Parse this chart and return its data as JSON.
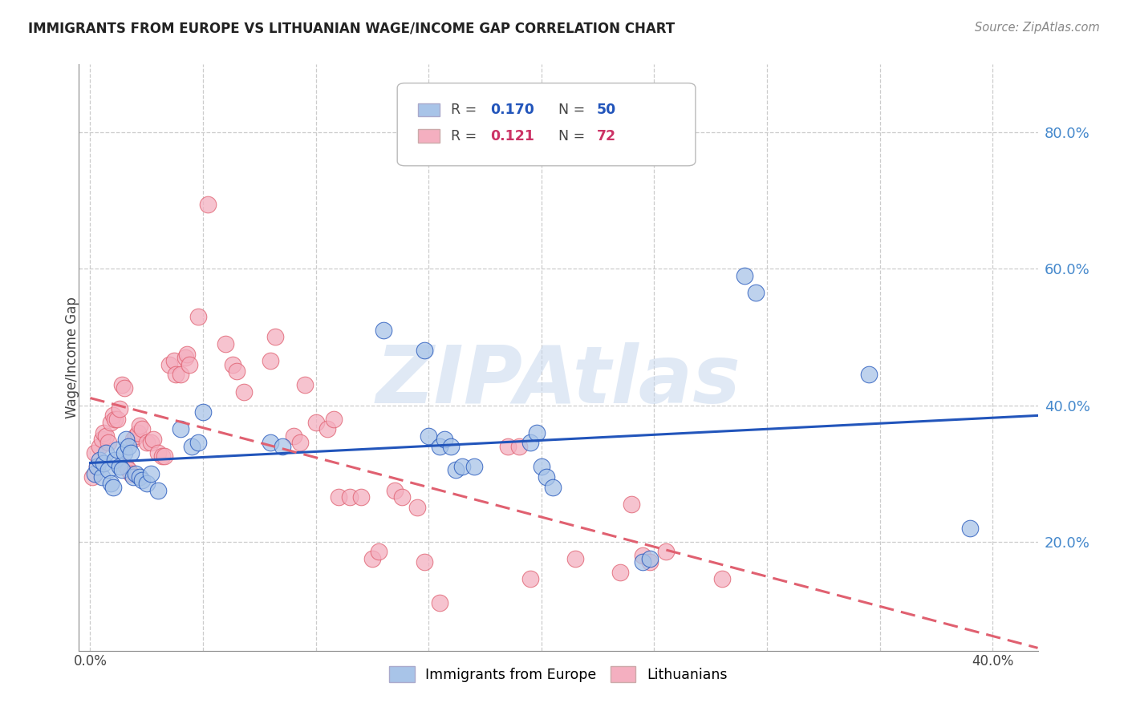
{
  "title": "IMMIGRANTS FROM EUROPE VS LITHUANIAN WAGE/INCOME GAP CORRELATION CHART",
  "source": "Source: ZipAtlas.com",
  "ylabel": "Wage/Income Gap",
  "right_yticks": [
    "20.0%",
    "40.0%",
    "60.0%",
    "80.0%"
  ],
  "right_ytick_vals": [
    0.2,
    0.4,
    0.6,
    0.8
  ],
  "blue_color": "#a8c4e8",
  "pink_color": "#f4afc0",
  "blue_line_color": "#2255bb",
  "pink_line_color": "#e06070",
  "blue_scatter": [
    [
      0.002,
      0.3
    ],
    [
      0.003,
      0.31
    ],
    [
      0.004,
      0.32
    ],
    [
      0.005,
      0.295
    ],
    [
      0.006,
      0.315
    ],
    [
      0.007,
      0.33
    ],
    [
      0.008,
      0.305
    ],
    [
      0.009,
      0.285
    ],
    [
      0.01,
      0.28
    ],
    [
      0.011,
      0.32
    ],
    [
      0.012,
      0.335
    ],
    [
      0.013,
      0.31
    ],
    [
      0.014,
      0.305
    ],
    [
      0.015,
      0.33
    ],
    [
      0.016,
      0.35
    ],
    [
      0.017,
      0.34
    ],
    [
      0.018,
      0.33
    ],
    [
      0.019,
      0.295
    ],
    [
      0.02,
      0.3
    ],
    [
      0.022,
      0.295
    ],
    [
      0.023,
      0.29
    ],
    [
      0.025,
      0.285
    ],
    [
      0.027,
      0.3
    ],
    [
      0.03,
      0.275
    ],
    [
      0.04,
      0.365
    ],
    [
      0.045,
      0.34
    ],
    [
      0.048,
      0.345
    ],
    [
      0.05,
      0.39
    ],
    [
      0.08,
      0.345
    ],
    [
      0.085,
      0.34
    ],
    [
      0.13,
      0.51
    ],
    [
      0.148,
      0.48
    ],
    [
      0.15,
      0.355
    ],
    [
      0.155,
      0.34
    ],
    [
      0.157,
      0.35
    ],
    [
      0.16,
      0.34
    ],
    [
      0.162,
      0.305
    ],
    [
      0.165,
      0.31
    ],
    [
      0.17,
      0.31
    ],
    [
      0.195,
      0.345
    ],
    [
      0.198,
      0.36
    ],
    [
      0.2,
      0.31
    ],
    [
      0.202,
      0.295
    ],
    [
      0.205,
      0.28
    ],
    [
      0.245,
      0.17
    ],
    [
      0.248,
      0.175
    ],
    [
      0.29,
      0.59
    ],
    [
      0.295,
      0.565
    ],
    [
      0.345,
      0.445
    ],
    [
      0.39,
      0.22
    ]
  ],
  "pink_scatter": [
    [
      0.001,
      0.295
    ],
    [
      0.002,
      0.33
    ],
    [
      0.003,
      0.31
    ],
    [
      0.004,
      0.34
    ],
    [
      0.005,
      0.35
    ],
    [
      0.006,
      0.36
    ],
    [
      0.007,
      0.355
    ],
    [
      0.008,
      0.345
    ],
    [
      0.009,
      0.375
    ],
    [
      0.01,
      0.385
    ],
    [
      0.011,
      0.38
    ],
    [
      0.012,
      0.38
    ],
    [
      0.013,
      0.395
    ],
    [
      0.014,
      0.43
    ],
    [
      0.015,
      0.425
    ],
    [
      0.016,
      0.31
    ],
    [
      0.017,
      0.305
    ],
    [
      0.018,
      0.3
    ],
    [
      0.019,
      0.35
    ],
    [
      0.02,
      0.355
    ],
    [
      0.021,
      0.36
    ],
    [
      0.022,
      0.37
    ],
    [
      0.023,
      0.365
    ],
    [
      0.025,
      0.345
    ],
    [
      0.027,
      0.345
    ],
    [
      0.028,
      0.35
    ],
    [
      0.03,
      0.33
    ],
    [
      0.032,
      0.325
    ],
    [
      0.033,
      0.325
    ],
    [
      0.035,
      0.46
    ],
    [
      0.037,
      0.465
    ],
    [
      0.038,
      0.445
    ],
    [
      0.04,
      0.445
    ],
    [
      0.042,
      0.47
    ],
    [
      0.043,
      0.475
    ],
    [
      0.044,
      0.46
    ],
    [
      0.048,
      0.53
    ],
    [
      0.052,
      0.695
    ],
    [
      0.06,
      0.49
    ],
    [
      0.063,
      0.46
    ],
    [
      0.065,
      0.45
    ],
    [
      0.068,
      0.42
    ],
    [
      0.08,
      0.465
    ],
    [
      0.082,
      0.5
    ],
    [
      0.09,
      0.355
    ],
    [
      0.093,
      0.345
    ],
    [
      0.095,
      0.43
    ],
    [
      0.1,
      0.375
    ],
    [
      0.105,
      0.365
    ],
    [
      0.108,
      0.38
    ],
    [
      0.11,
      0.265
    ],
    [
      0.115,
      0.265
    ],
    [
      0.12,
      0.265
    ],
    [
      0.125,
      0.175
    ],
    [
      0.128,
      0.185
    ],
    [
      0.135,
      0.275
    ],
    [
      0.138,
      0.265
    ],
    [
      0.145,
      0.25
    ],
    [
      0.148,
      0.17
    ],
    [
      0.155,
      0.11
    ],
    [
      0.185,
      0.34
    ],
    [
      0.19,
      0.34
    ],
    [
      0.195,
      0.145
    ],
    [
      0.215,
      0.175
    ],
    [
      0.235,
      0.155
    ],
    [
      0.24,
      0.255
    ],
    [
      0.245,
      0.18
    ],
    [
      0.248,
      0.17
    ],
    [
      0.255,
      0.185
    ],
    [
      0.28,
      0.145
    ]
  ],
  "xlim": [
    -0.005,
    0.42
  ],
  "ylim": [
    0.04,
    0.9
  ],
  "xtick_positions": [
    0.0,
    0.05,
    0.1,
    0.15,
    0.2,
    0.25,
    0.3,
    0.35,
    0.4
  ],
  "watermark_text": "ZIPAtlas",
  "background_color": "#ffffff"
}
